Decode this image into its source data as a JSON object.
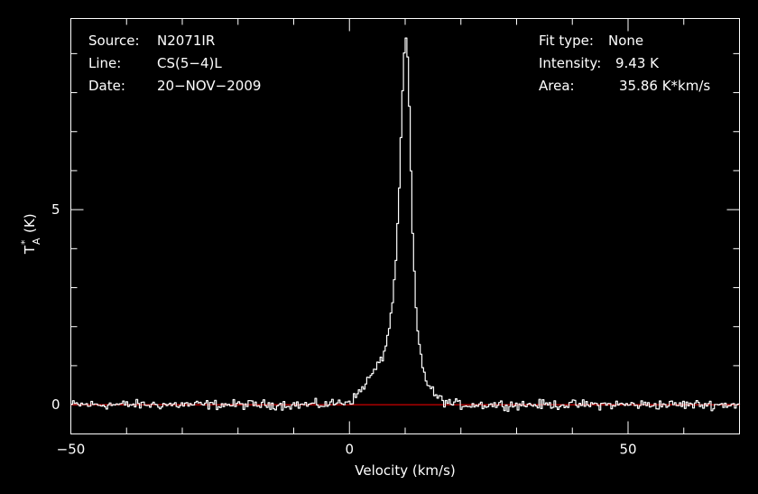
{
  "header_left": {
    "source_label": "Source:",
    "source_value": "N2071IR",
    "line_label": "Line:",
    "line_value": "CS(5−4)L",
    "date_label": "Date:",
    "date_value": "20−NOV−2009"
  },
  "header_right": {
    "fit_label": "Fit type:",
    "fit_value": "None",
    "intensity_label": "Intensity:",
    "intensity_value": "9.43 K",
    "area_label": "Area:",
    "area_value": "35.86 K*km/s"
  },
  "colors": {
    "background": "#000000",
    "spectrum": "#ffffff",
    "baseline": "#ff0000",
    "axes": "#ffffff"
  },
  "chart_data": {
    "type": "line",
    "xlabel": "Velocity (km/s)",
    "ylabel_main": "T",
    "ylabel_sup": "*",
    "ylabel_sub": "A",
    "ylabel_unit": "(K)",
    "xlim": [
      -50,
      70
    ],
    "ylim": [
      -0.75,
      9.9
    ],
    "xticks": [
      {
        "value": -50,
        "label": "−50"
      },
      {
        "value": 0,
        "label": "0"
      },
      {
        "value": 50,
        "label": "50"
      }
    ],
    "yticks": [
      {
        "value": 0,
        "label": "0"
      },
      {
        "value": 5,
        "label": "5"
      }
    ],
    "baseline": {
      "y": 0,
      "color": "#ff0000"
    },
    "series": [
      {
        "noise_amplitude": 0.12,
        "x": [
          -50,
          -45,
          -40,
          -35,
          -30,
          -25,
          -20,
          -15,
          -10,
          -5,
          -2,
          0,
          1,
          2,
          3,
          4,
          5,
          6,
          6.5,
          7,
          7.5,
          8,
          8.5,
          9,
          9.3,
          9.6,
          9.9,
          10.2,
          10.5,
          10.8,
          11.1,
          11.4,
          11.7,
          12,
          12.5,
          13,
          13.5,
          14,
          15,
          16,
          17,
          18,
          20,
          25,
          30,
          40,
          50,
          60,
          70
        ],
        "y": [
          0,
          0,
          0,
          0,
          0,
          0,
          0,
          0,
          0,
          0,
          0.05,
          0.1,
          0.2,
          0.4,
          0.6,
          0.8,
          1.0,
          1.3,
          1.6,
          2.0,
          2.5,
          3.3,
          4.5,
          6.3,
          7.6,
          8.8,
          9.43,
          9.2,
          8.2,
          6.5,
          4.8,
          3.6,
          2.7,
          2.0,
          1.4,
          1.0,
          0.7,
          0.5,
          0.3,
          0.15,
          0.08,
          0.03,
          0,
          0,
          0,
          0,
          0,
          0,
          0
        ]
      }
    ]
  }
}
